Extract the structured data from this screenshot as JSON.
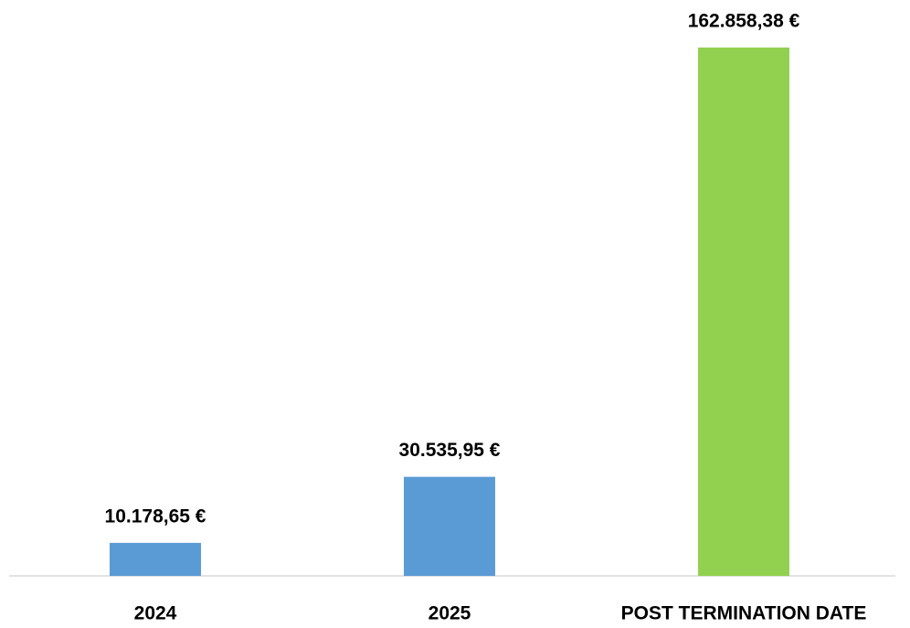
{
  "chart_data": {
    "type": "bar",
    "categories": [
      "2024",
      "2025",
      "POST TERMINATION DATE"
    ],
    "values": [
      10178.65,
      30535.95,
      162858.38
    ],
    "value_labels": [
      "10.178,65 €",
      "30.535,95 €",
      "162.858,38 €"
    ],
    "colors": [
      "#5b9bd5",
      "#5b9bd5",
      "#92d050"
    ]
  }
}
